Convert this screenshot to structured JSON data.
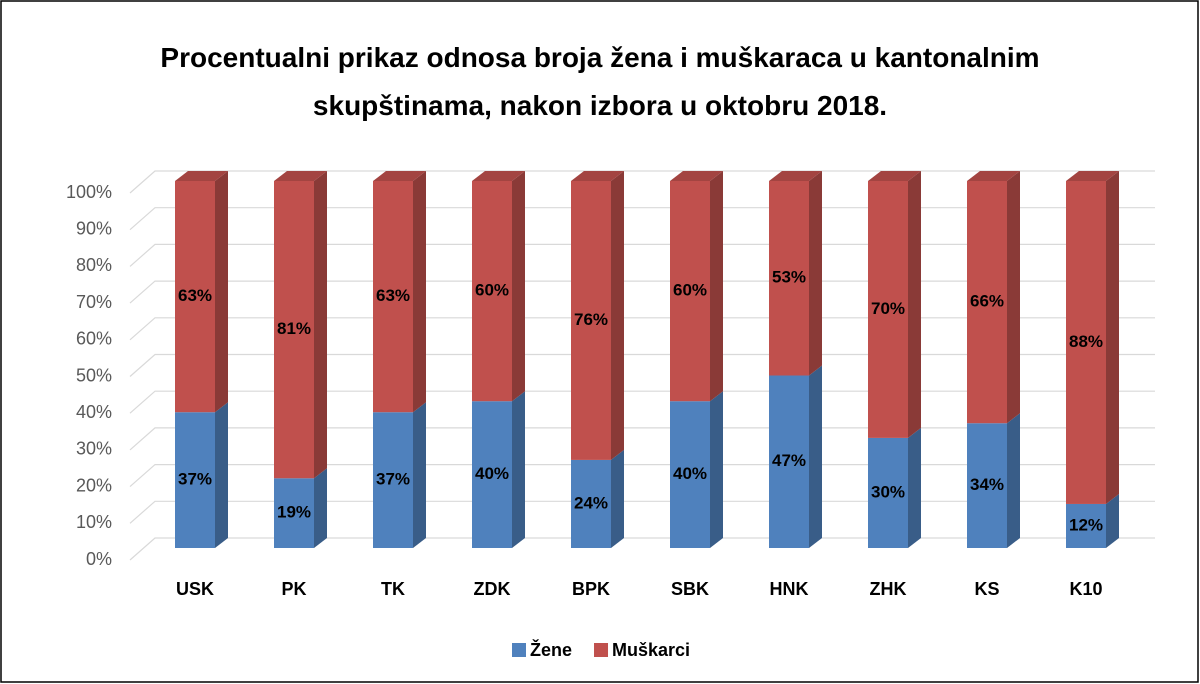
{
  "chart_data": {
    "type": "bar3d_stacked",
    "title": "Procentualni prikaz odnosa broja žena i muškaraca u kantonalnim skupštinama, nakon izbora u oktobru 2018.",
    "categories": [
      "USK",
      "PK",
      "TK",
      "ZDK",
      "BPK",
      "SBK",
      "HNK",
      "ZHK",
      "KS",
      "K10"
    ],
    "series": [
      {
        "name": "Žene",
        "color": "#4f81bd",
        "values": [
          37,
          19,
          37,
          40,
          24,
          40,
          47,
          30,
          34,
          12
        ],
        "value_labels": [
          "37%",
          "19%",
          "37%",
          "40%",
          "24%",
          "40%",
          "47%",
          "30%",
          "34%",
          "12%"
        ]
      },
      {
        "name": "Muškarci",
        "color": "#c0504d",
        "values": [
          63,
          81,
          63,
          60,
          76,
          60,
          53,
          70,
          66,
          88
        ],
        "value_labels": [
          "63%",
          "81%",
          "63%",
          "60%",
          "76%",
          "60%",
          "53%",
          "70%",
          "66%",
          "88%"
        ]
      }
    ],
    "ylim": [
      0,
      100
    ],
    "yticks": [
      {
        "value": 0,
        "label": "0%"
      },
      {
        "value": 10,
        "label": "10%"
      },
      {
        "value": 20,
        "label": "20%"
      },
      {
        "value": 30,
        "label": "30%"
      },
      {
        "value": 40,
        "label": "40%"
      },
      {
        "value": 50,
        "label": "50%"
      },
      {
        "value": 60,
        "label": "60%"
      },
      {
        "value": 70,
        "label": "70%"
      },
      {
        "value": 80,
        "label": "80%"
      },
      {
        "value": 90,
        "label": "90%"
      },
      {
        "value": 100,
        "label": "100%"
      }
    ],
    "grid": true,
    "legend": "bottom"
  }
}
